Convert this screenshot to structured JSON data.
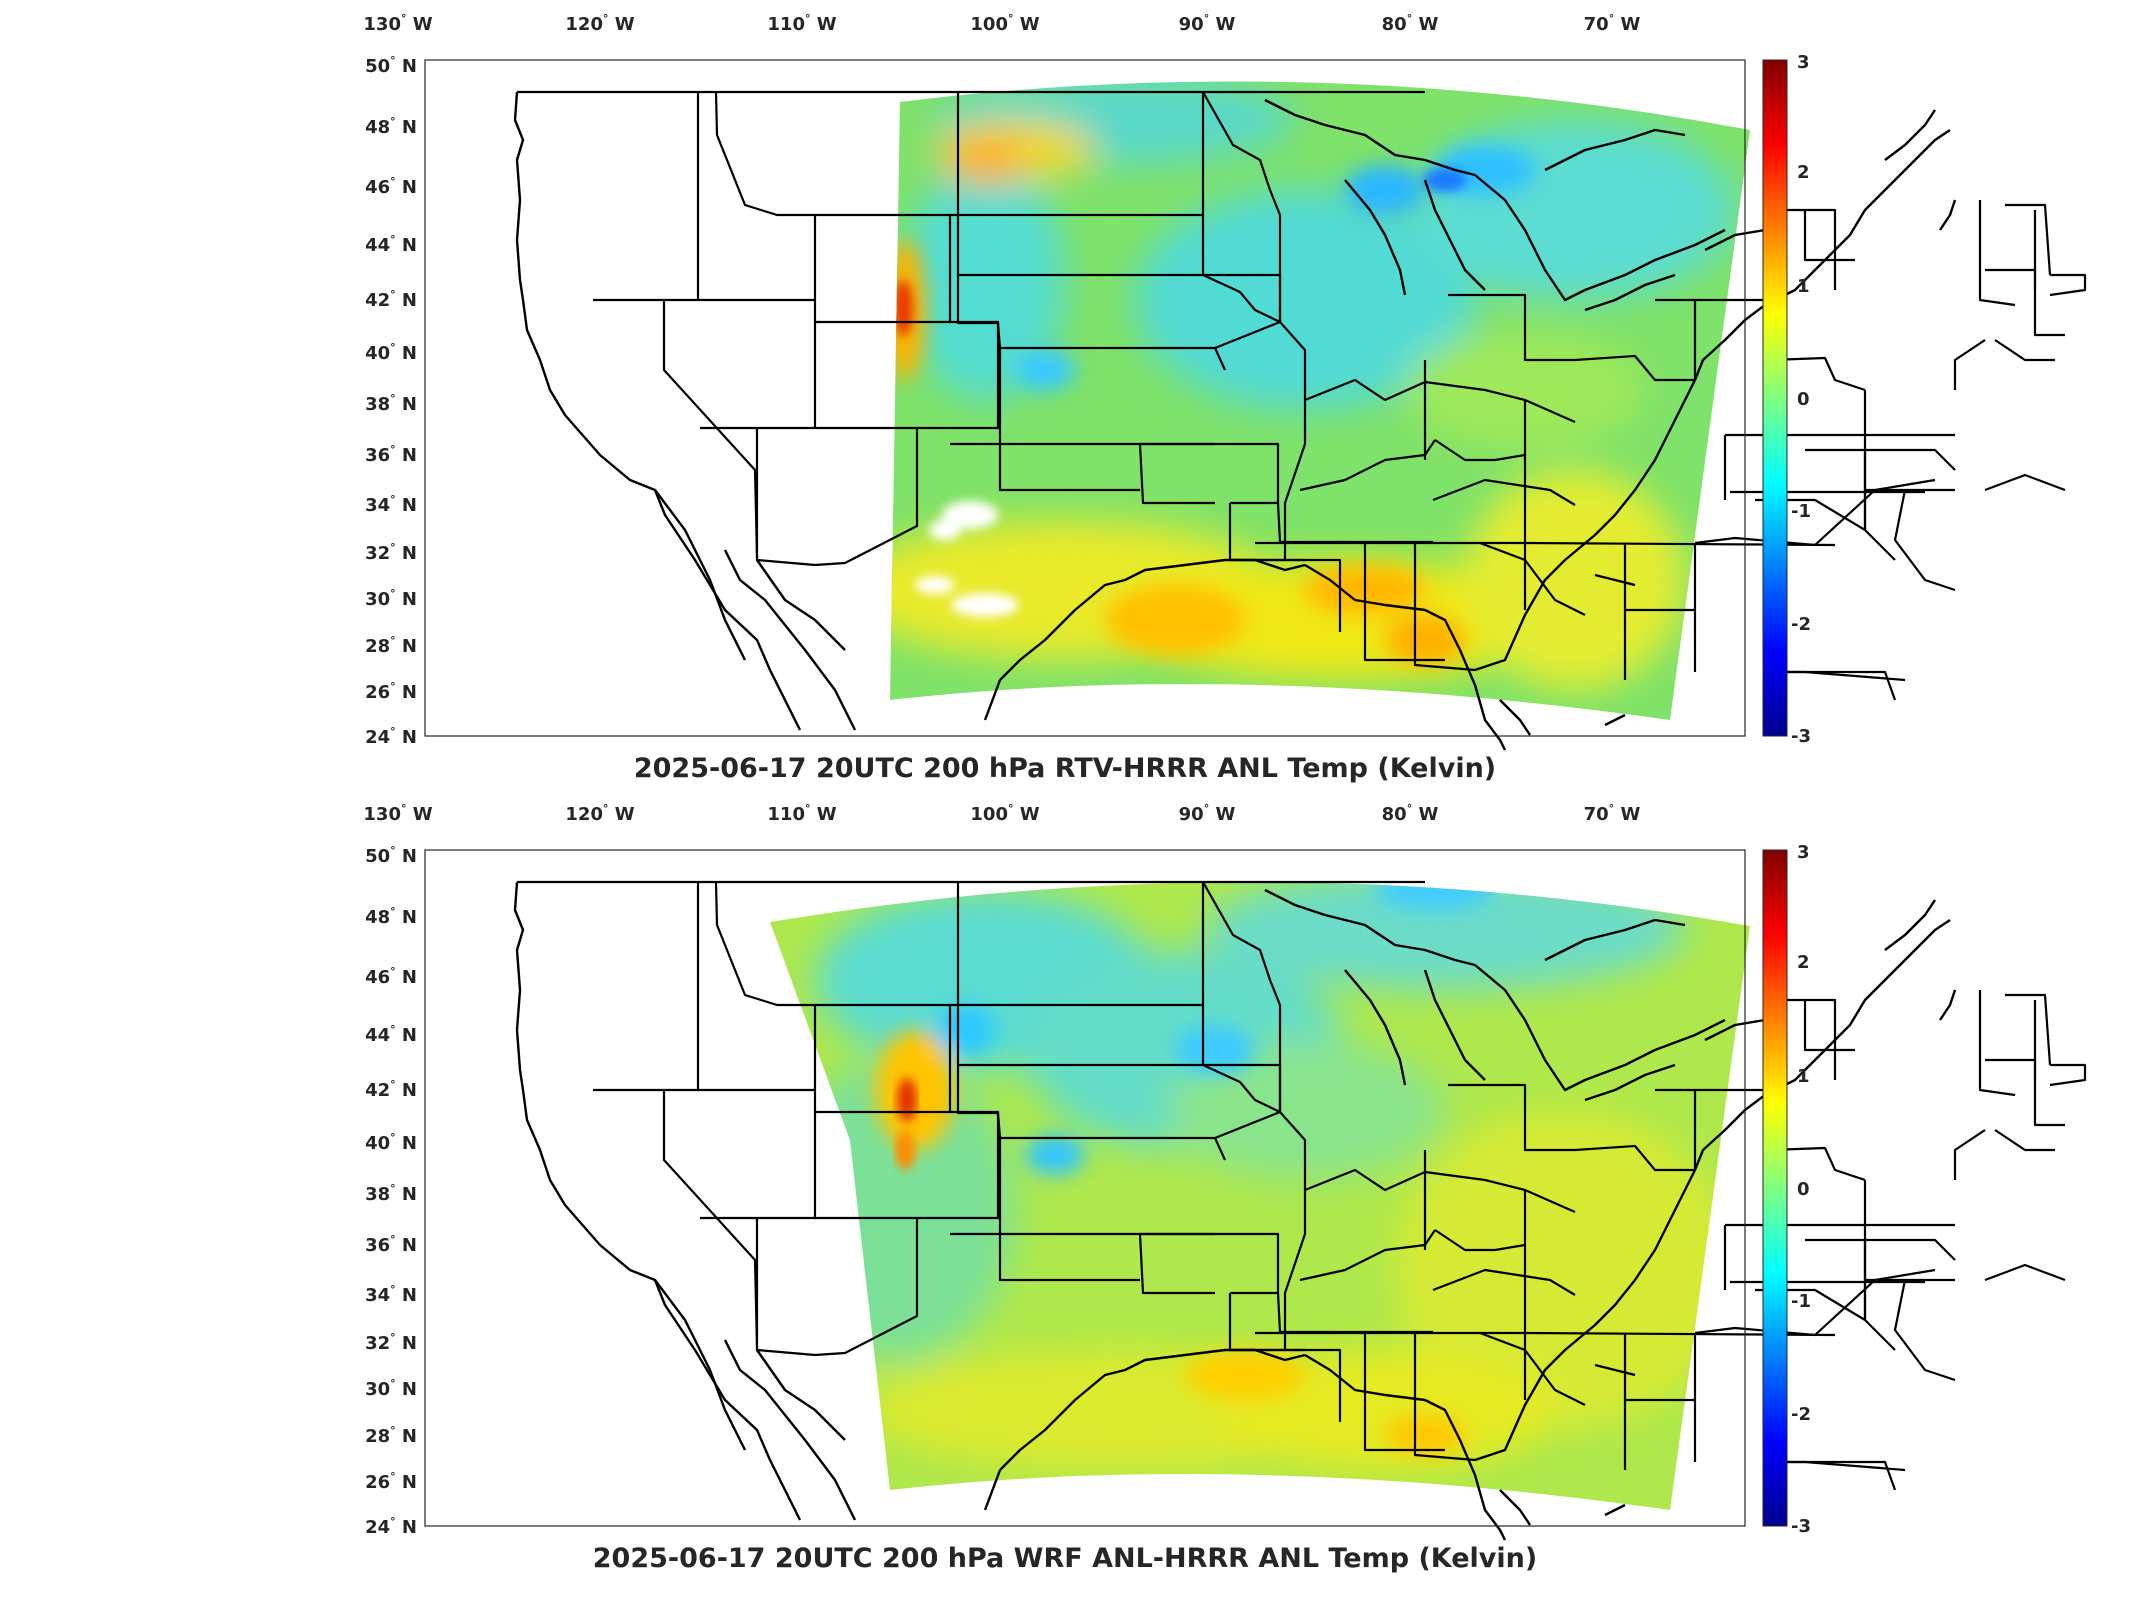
{
  "figure": {
    "colorbar": {
      "colormap": "jet",
      "range": [
        -3,
        3
      ],
      "ticks": [
        "3",
        "2",
        "1",
        "0",
        "-1",
        "-2",
        "-3"
      ]
    },
    "panels": [
      {
        "title": "2025-06-17 20UTC 200 hPa RTV-HRRR ANL Temp (Kelvin)",
        "lon_ticks": [
          "130",
          "120",
          "110",
          "100",
          "90",
          "80",
          "70"
        ],
        "lon_hemisphere": "W",
        "lat_ticks": [
          "50",
          "48",
          "46",
          "44",
          "42",
          "40",
          "38",
          "36",
          "34",
          "32",
          "30",
          "28",
          "26",
          "24"
        ],
        "lat_hemisphere": "N",
        "degree_symbol": "°",
        "field_description_colors": {
          "background": "#7fe26a",
          "cool_spots": "#2fd8ff",
          "warm_spots": "#ffd400",
          "hot_spots": "#ff4a00"
        }
      },
      {
        "title": "2025-06-17 20UTC 200 hPa WRF ANL-HRRR ANL Temp (Kelvin)",
        "lon_ticks": [
          "130",
          "120",
          "110",
          "100",
          "90",
          "80",
          "70"
        ],
        "lon_hemisphere": "W",
        "lat_ticks": [
          "50",
          "48",
          "46",
          "44",
          "42",
          "40",
          "38",
          "36",
          "34",
          "32",
          "30",
          "28",
          "26",
          "24"
        ],
        "lat_hemisphere": "N",
        "degree_symbol": "°",
        "field_description_colors": {
          "background": "#aee84c",
          "cool_spots": "#3ad4ff",
          "warm_spots": "#ffe000",
          "hot_spots": "#ff3a00"
        }
      }
    ]
  }
}
